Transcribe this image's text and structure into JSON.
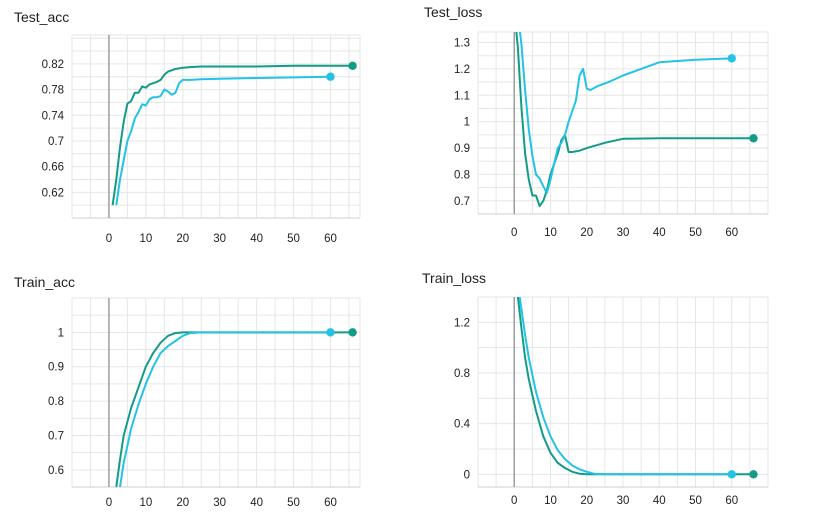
{
  "colors": {
    "teal_series": "#129c88",
    "cyan_series": "#23c2e6",
    "grid": "#e6e6e6",
    "zero_axis": "#9e9e9e"
  },
  "chart_data": [
    {
      "type": "line",
      "title": "Test_acc",
      "xlim": [
        -10,
        68
      ],
      "ylim": [
        0.58,
        0.865
      ],
      "x_ticks": [
        0,
        10,
        20,
        30,
        40,
        50,
        60
      ],
      "y_ticks": [
        0.62,
        0.66,
        0.7,
        0.74,
        0.78,
        0.82
      ],
      "y_tick_labels": [
        "0.62",
        "0.66",
        "0.7",
        "0.74",
        "0.78",
        "0.82"
      ],
      "grid": true,
      "series": [
        {
          "color": "#129c88",
          "x": [
            1,
            2,
            3,
            4,
            5,
            6,
            7,
            8,
            9,
            10,
            11,
            12,
            13,
            14,
            15,
            16,
            17,
            18,
            19,
            20,
            22,
            25,
            30,
            40,
            50,
            60,
            66
          ],
          "y": [
            0.6,
            0.64,
            0.69,
            0.73,
            0.758,
            0.762,
            0.775,
            0.775,
            0.785,
            0.783,
            0.788,
            0.79,
            0.792,
            0.795,
            0.803,
            0.808,
            0.81,
            0.812,
            0.813,
            0.814,
            0.815,
            0.816,
            0.816,
            0.816,
            0.817,
            0.817,
            0.817
          ]
        },
        {
          "color": "#23c2e6",
          "x": [
            2,
            3,
            4,
            5,
            6,
            7,
            8,
            9,
            10,
            11,
            12,
            13,
            14,
            15,
            16,
            17,
            18,
            19,
            20,
            22,
            25,
            30,
            40,
            50,
            60
          ],
          "y": [
            0.6,
            0.64,
            0.67,
            0.7,
            0.715,
            0.735,
            0.745,
            0.757,
            0.755,
            0.765,
            0.768,
            0.768,
            0.77,
            0.78,
            0.777,
            0.772,
            0.775,
            0.79,
            0.795,
            0.795,
            0.796,
            0.797,
            0.798,
            0.799,
            0.8
          ]
        }
      ]
    },
    {
      "type": "line",
      "title": "Test_loss",
      "xlim": [
        -10,
        70
      ],
      "ylim": [
        0.65,
        1.34
      ],
      "x_ticks": [
        0,
        10,
        20,
        30,
        40,
        50,
        60
      ],
      "y_ticks": [
        0.7,
        0.8,
        0.9,
        1,
        1.1,
        1.2,
        1.3
      ],
      "y_tick_labels": [
        "0.7",
        "0.8",
        "0.9",
        "1",
        "1.1",
        "1.2",
        "1.3"
      ],
      "grid": true,
      "series": [
        {
          "color": "#129c88",
          "x": [
            0.5,
            1,
            2,
            3,
            4,
            5,
            6,
            7,
            8,
            9,
            10,
            11,
            12,
            13,
            14,
            15,
            16,
            18,
            20,
            25,
            30,
            40,
            50,
            60,
            66
          ],
          "y": [
            1.35,
            1.28,
            1.05,
            0.88,
            0.78,
            0.72,
            0.72,
            0.68,
            0.7,
            0.74,
            0.8,
            0.84,
            0.88,
            0.93,
            0.95,
            0.885,
            0.885,
            0.89,
            0.9,
            0.92,
            0.935,
            0.937,
            0.937,
            0.937,
            0.937
          ]
        },
        {
          "color": "#23c2e6",
          "x": [
            1.5,
            2,
            3,
            4,
            5,
            6,
            7,
            8,
            9,
            10,
            11,
            12,
            13,
            14,
            15,
            16,
            17,
            18,
            19,
            20,
            21,
            23,
            26,
            30,
            35,
            40,
            50,
            60
          ],
          "y": [
            1.35,
            1.29,
            1.12,
            0.97,
            0.87,
            0.8,
            0.785,
            0.755,
            0.73,
            0.78,
            0.84,
            0.9,
            0.92,
            0.95,
            1.0,
            1.04,
            1.08,
            1.175,
            1.2,
            1.125,
            1.12,
            1.135,
            1.15,
            1.175,
            1.2,
            1.225,
            1.235,
            1.24
          ]
        }
      ]
    },
    {
      "type": "line",
      "title": "Train_acc",
      "xlim": [
        -10,
        68
      ],
      "ylim": [
        0.55,
        1.1
      ],
      "x_ticks": [
        0,
        10,
        20,
        30,
        40,
        50,
        60
      ],
      "y_ticks": [
        0.6,
        0.7,
        0.8,
        0.9,
        1
      ],
      "y_tick_labels": [
        "0.6",
        "0.7",
        "0.8",
        "0.9",
        "1"
      ],
      "grid": true,
      "series": [
        {
          "color": "#129c88",
          "x": [
            2,
            3,
            4,
            5,
            6,
            8,
            10,
            12,
            14,
            16,
            18,
            20,
            25,
            30,
            40,
            50,
            60,
            66
          ],
          "y": [
            0.55,
            0.63,
            0.7,
            0.74,
            0.78,
            0.84,
            0.9,
            0.94,
            0.97,
            0.99,
            0.998,
            1,
            1,
            1,
            1,
            1,
            1,
            1
          ]
        },
        {
          "color": "#23c2e6",
          "x": [
            3,
            4,
            5,
            6,
            8,
            10,
            12,
            14,
            16,
            18,
            20,
            22,
            25,
            30,
            40,
            50,
            60
          ],
          "y": [
            0.55,
            0.62,
            0.67,
            0.72,
            0.79,
            0.85,
            0.9,
            0.94,
            0.96,
            0.975,
            0.99,
            0.998,
            1,
            1,
            1,
            1,
            1
          ]
        }
      ]
    },
    {
      "type": "line",
      "title": "Train_loss",
      "xlim": [
        -10,
        70
      ],
      "ylim": [
        -0.1,
        1.4
      ],
      "x_ticks": [
        0,
        10,
        20,
        30,
        40,
        50,
        60
      ],
      "y_ticks": [
        0,
        0.4,
        0.8,
        1.2
      ],
      "y_tick_labels": [
        "0",
        "0.4",
        "0.8",
        "1.2"
      ],
      "grid": true,
      "series": [
        {
          "color": "#129c88",
          "x": [
            1,
            2,
            3,
            4,
            6,
            8,
            10,
            12,
            14,
            16,
            18,
            20,
            25,
            30,
            40,
            50,
            60,
            66
          ],
          "y": [
            1.4,
            1.15,
            0.92,
            0.75,
            0.5,
            0.3,
            0.17,
            0.09,
            0.05,
            0.02,
            0.005,
            0,
            0,
            0,
            0,
            0,
            0,
            0
          ]
        },
        {
          "color": "#23c2e6",
          "x": [
            1.5,
            2,
            3,
            4,
            6,
            8,
            10,
            12,
            14,
            16,
            18,
            20,
            22,
            25,
            30,
            40,
            50,
            60
          ],
          "y": [
            1.4,
            1.3,
            1.1,
            0.92,
            0.65,
            0.45,
            0.3,
            0.19,
            0.12,
            0.07,
            0.04,
            0.02,
            0.005,
            0,
            0,
            0,
            0,
            0
          ]
        }
      ]
    }
  ]
}
